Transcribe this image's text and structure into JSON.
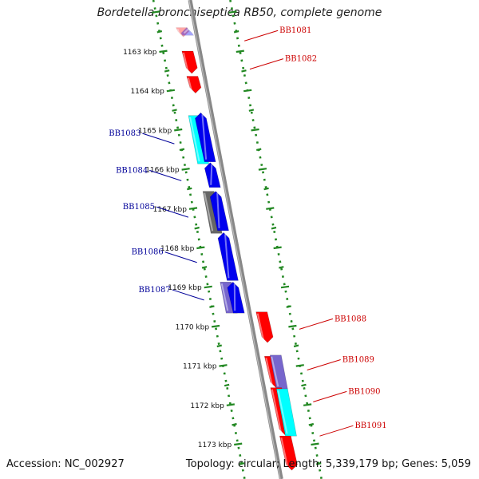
{
  "title": "Bordetella bronchiseptica RB50, complete genome",
  "accession": "Accession: NC_002927",
  "footer": "Topology: circular; Length: 5,339,179 bp; Genes: 5,059",
  "colors": {
    "forward_label": "#cc0000",
    "reverse_label": "#000099",
    "red": "#ff0000",
    "blue": "#0000ee",
    "cyan": "#00ffff",
    "purple": "#7766cc",
    "gray": "#666666",
    "ruler": "#228822",
    "backbone": "#888888"
  },
  "ticks": [
    {
      "label": "1163 kbp",
      "pos": 1163
    },
    {
      "label": "1164 kbp",
      "pos": 1164
    },
    {
      "label": "1165 kbp",
      "pos": 1165
    },
    {
      "label": "1166 kbp",
      "pos": 1166
    },
    {
      "label": "1167 kbp",
      "pos": 1167
    },
    {
      "label": "1168 kbp",
      "pos": 1168
    },
    {
      "label": "1169 kbp",
      "pos": 1169
    },
    {
      "label": "1170 kbp",
      "pos": 1170
    },
    {
      "label": "1171 kbp",
      "pos": 1171
    },
    {
      "label": "1172 kbp",
      "pos": 1172
    },
    {
      "label": "1173 kbp",
      "pos": 1173
    }
  ],
  "gene_labels": [
    {
      "text": "BB1081",
      "strand": "forward",
      "pos": 1162.72
    },
    {
      "text": "BB1082",
      "strand": "forward",
      "pos": 1163.44
    },
    {
      "text": "BB1083",
      "strand": "reverse",
      "pos": 1165.34
    },
    {
      "text": "BB1084",
      "strand": "reverse",
      "pos": 1166.28
    },
    {
      "text": "BB1085",
      "strand": "reverse",
      "pos": 1167.21
    },
    {
      "text": "BB1086",
      "strand": "reverse",
      "pos": 1168.36
    },
    {
      "text": "BB1087",
      "strand": "reverse",
      "pos": 1169.32
    },
    {
      "text": "BB1088",
      "strand": "forward",
      "pos": 1170.06
    },
    {
      "text": "BB1089",
      "strand": "forward",
      "pos": 1171.1
    },
    {
      "text": "BB1090",
      "strand": "forward",
      "pos": 1171.91
    },
    {
      "text": "BB1091",
      "strand": "forward",
      "pos": 1172.78
    }
  ],
  "genes": [
    {
      "track": 1.9,
      "start": 1162.38,
      "end": 1162.62,
      "color": "red",
      "dir": 1,
      "faded": true
    },
    {
      "track": 1.2,
      "start": 1162.38,
      "end": 1162.58,
      "color": "blue",
      "dir": -1,
      "faded": true
    },
    {
      "track": 1.7,
      "start": 1162.98,
      "end": 1163.55,
      "color": "red",
      "dir": 1
    },
    {
      "track": 1.7,
      "start": 1163.62,
      "end": 1164.05,
      "color": "red",
      "dir": 1
    },
    {
      "track": 2.5,
      "start": 1164.62,
      "end": 1165.85,
      "color": "cyan",
      "dir": 0
    },
    {
      "track": 1.5,
      "start": 1164.55,
      "end": 1165.8,
      "color": "blue",
      "dir": -1
    },
    {
      "track": 1.5,
      "start": 1165.82,
      "end": 1166.45,
      "color": "blue",
      "dir": -1
    },
    {
      "track": 2.5,
      "start": 1166.55,
      "end": 1167.62,
      "color": "gray",
      "dir": 0
    },
    {
      "track": 1.5,
      "start": 1166.55,
      "end": 1167.55,
      "color": "blue",
      "dir": -1
    },
    {
      "track": 1.5,
      "start": 1167.6,
      "end": 1168.82,
      "color": "blue",
      "dir": -1
    },
    {
      "track": 2.5,
      "start": 1168.86,
      "end": 1169.65,
      "color": "purple",
      "dir": 0
    },
    {
      "track": 1.5,
      "start": 1168.86,
      "end": 1169.65,
      "color": "blue",
      "dir": -1
    },
    {
      "track": 1.7,
      "start": 1169.62,
      "end": 1170.4,
      "color": "red",
      "dir": 1
    },
    {
      "track": 1.7,
      "start": 1170.75,
      "end": 1171.55,
      "color": "red",
      "dir": 1
    },
    {
      "track": 2.5,
      "start": 1170.72,
      "end": 1171.58,
      "color": "purple",
      "dir": 0
    },
    {
      "track": 1.7,
      "start": 1171.55,
      "end": 1172.75,
      "color": "red",
      "dir": 1
    },
    {
      "track": 2.5,
      "start": 1171.58,
      "end": 1172.78,
      "color": "cyan",
      "dir": 0
    },
    {
      "track": 1.7,
      "start": 1172.78,
      "end": 1173.65,
      "color": "red",
      "dir": 1
    }
  ]
}
